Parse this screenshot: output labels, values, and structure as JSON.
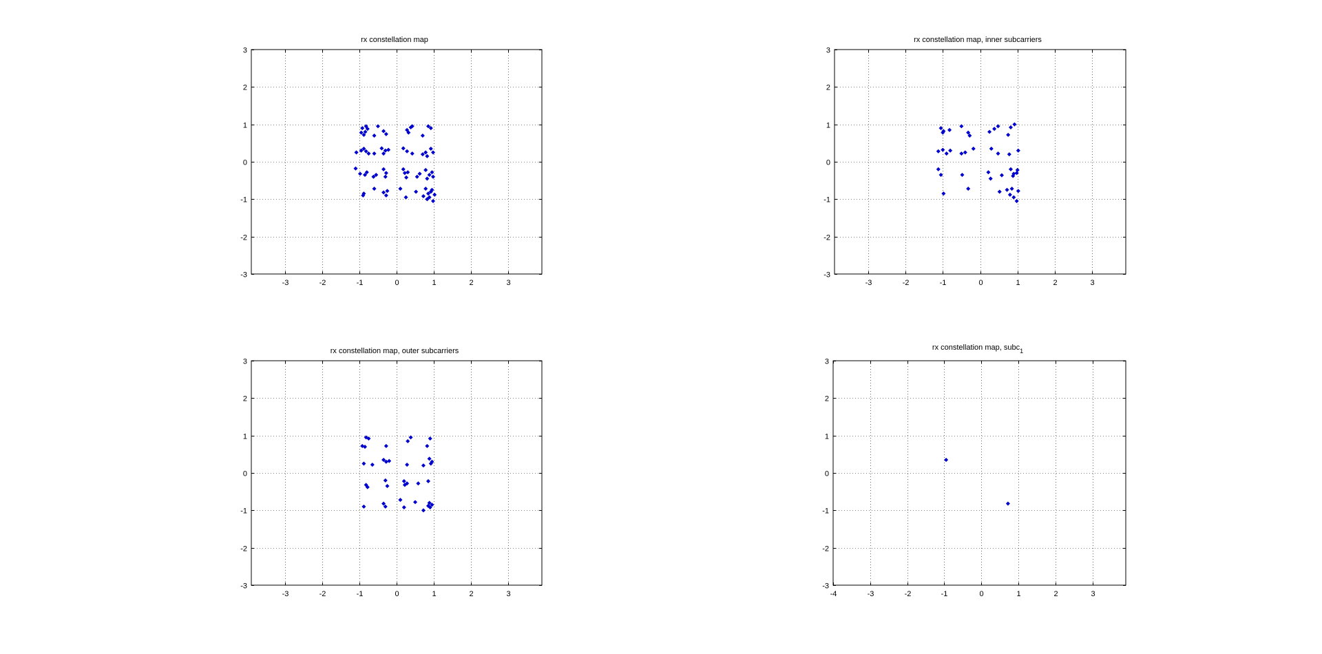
{
  "figure": {
    "background": "#ffffff",
    "marker_color": "#0000cc",
    "grid_color": "#000000"
  },
  "chart_data": [
    {
      "type": "scatter",
      "title": "rx constellation map",
      "title_subscript": "",
      "xlim": [
        -3.9,
        3.9
      ],
      "ylim": [
        -3,
        3
      ],
      "xticks": [
        -3,
        -2,
        -1,
        0,
        1,
        2,
        3
      ],
      "yticks": [
        -3,
        -2,
        -1,
        0,
        1,
        2,
        3
      ],
      "grid": true,
      "series": [
        {
          "points": [
            [
              -0.92,
              0.9
            ],
            [
              -0.82,
              0.95
            ],
            [
              -0.78,
              0.88
            ],
            [
              -0.95,
              0.78
            ],
            [
              -0.88,
              0.72
            ],
            [
              -0.84,
              0.8
            ],
            [
              -0.5,
              0.95
            ],
            [
              -0.35,
              0.82
            ],
            [
              -0.28,
              0.74
            ],
            [
              -0.6,
              0.7
            ],
            [
              0.28,
              0.85
            ],
            [
              0.38,
              0.92
            ],
            [
              0.42,
              0.95
            ],
            [
              0.32,
              0.78
            ],
            [
              0.7,
              0.7
            ],
            [
              0.85,
              0.95
            ],
            [
              0.92,
              0.9
            ],
            [
              -1.08,
              0.25
            ],
            [
              -0.95,
              0.3
            ],
            [
              -0.88,
              0.35
            ],
            [
              -0.75,
              0.22
            ],
            [
              -0.82,
              0.28
            ],
            [
              -0.6,
              0.22
            ],
            [
              -0.4,
              0.36
            ],
            [
              -0.3,
              0.3
            ],
            [
              -0.22,
              0.32
            ],
            [
              -0.35,
              0.22
            ],
            [
              0.18,
              0.36
            ],
            [
              0.28,
              0.28
            ],
            [
              0.42,
              0.22
            ],
            [
              0.7,
              0.2
            ],
            [
              0.78,
              0.25
            ],
            [
              0.92,
              0.35
            ],
            [
              0.98,
              0.25
            ],
            [
              0.82,
              0.15
            ],
            [
              -1.1,
              -0.18
            ],
            [
              -0.98,
              -0.32
            ],
            [
              -0.85,
              -0.35
            ],
            [
              -0.8,
              -0.28
            ],
            [
              -0.55,
              -0.35
            ],
            [
              -0.62,
              -0.4
            ],
            [
              -0.35,
              -0.2
            ],
            [
              -0.28,
              -0.3
            ],
            [
              -0.3,
              -0.4
            ],
            [
              0.18,
              -0.2
            ],
            [
              0.22,
              -0.3
            ],
            [
              0.26,
              -0.42
            ],
            [
              0.3,
              -0.28
            ],
            [
              0.55,
              -0.4
            ],
            [
              0.62,
              -0.32
            ],
            [
              0.78,
              -0.22
            ],
            [
              0.88,
              -0.35
            ],
            [
              0.95,
              -0.28
            ],
            [
              0.98,
              -0.4
            ],
            [
              0.82,
              -0.45
            ],
            [
              -0.88,
              -0.85
            ],
            [
              -0.9,
              -0.9
            ],
            [
              -0.6,
              -0.72
            ],
            [
              -0.35,
              -0.82
            ],
            [
              -0.28,
              -0.9
            ],
            [
              -0.25,
              -0.78
            ],
            [
              0.1,
              -0.72
            ],
            [
              0.25,
              -0.95
            ],
            [
              0.52,
              -0.8
            ],
            [
              0.72,
              -0.92
            ],
            [
              0.78,
              -0.72
            ],
            [
              0.85,
              -0.85
            ],
            [
              0.88,
              -0.95
            ],
            [
              0.92,
              -0.8
            ],
            [
              0.95,
              -0.75
            ],
            [
              0.98,
              -1.05
            ],
            [
              1.02,
              -0.88
            ],
            [
              0.82,
              -1.0
            ]
          ]
        }
      ]
    },
    {
      "type": "scatter",
      "title": "rx constellation map, inner subcarriers",
      "title_subscript": "",
      "xlim": [
        -3.9,
        3.9
      ],
      "ylim": [
        -3,
        3
      ],
      "xticks": [
        -3,
        -2,
        -1,
        0,
        1,
        2,
        3
      ],
      "yticks": [
        -3,
        -2,
        -1,
        0,
        1,
        2,
        3
      ],
      "grid": true,
      "series": [
        {
          "points": [
            [
              -1.05,
              0.9
            ],
            [
              -0.98,
              0.82
            ],
            [
              -0.82,
              0.85
            ],
            [
              -1.0,
              0.78
            ],
            [
              -0.5,
              0.95
            ],
            [
              -0.32,
              0.78
            ],
            [
              -0.28,
              0.7
            ],
            [
              0.25,
              0.8
            ],
            [
              0.38,
              0.88
            ],
            [
              0.48,
              0.95
            ],
            [
              0.75,
              0.72
            ],
            [
              0.82,
              0.92
            ],
            [
              0.92,
              1.0
            ],
            [
              -1.12,
              0.28
            ],
            [
              -1.0,
              0.32
            ],
            [
              -0.9,
              0.22
            ],
            [
              -0.8,
              0.3
            ],
            [
              -0.5,
              0.22
            ],
            [
              -0.4,
              0.25
            ],
            [
              -0.18,
              0.35
            ],
            [
              0.3,
              0.35
            ],
            [
              0.48,
              0.22
            ],
            [
              0.78,
              0.2
            ],
            [
              1.02,
              0.3
            ],
            [
              -1.12,
              -0.2
            ],
            [
              -1.05,
              -0.35
            ],
            [
              -0.48,
              -0.35
            ],
            [
              0.22,
              -0.28
            ],
            [
              0.28,
              -0.45
            ],
            [
              0.58,
              -0.36
            ],
            [
              0.82,
              -0.2
            ],
            [
              0.9,
              -0.32
            ],
            [
              0.98,
              -0.3
            ],
            [
              1.0,
              -0.22
            ],
            [
              0.88,
              -0.38
            ],
            [
              -0.98,
              -0.85
            ],
            [
              -0.32,
              -0.72
            ],
            [
              0.52,
              -0.8
            ],
            [
              0.72,
              -0.75
            ],
            [
              0.8,
              -0.88
            ],
            [
              0.85,
              -0.72
            ],
            [
              0.9,
              -0.95
            ],
            [
              0.98,
              -1.05
            ],
            [
              1.02,
              -0.78
            ]
          ]
        }
      ]
    },
    {
      "type": "scatter",
      "title": "rx constellation map, outer subcarriers",
      "title_subscript": "",
      "xlim": [
        -3.9,
        3.9
      ],
      "ylim": [
        -3,
        3
      ],
      "xticks": [
        -3,
        -2,
        -1,
        0,
        1,
        2,
        3
      ],
      "yticks": [
        -3,
        -2,
        -1,
        0,
        1,
        2,
        3
      ],
      "grid": true,
      "series": [
        {
          "points": [
            [
              -0.82,
              0.95
            ],
            [
              -0.75,
              0.92
            ],
            [
              -0.92,
              0.72
            ],
            [
              -0.85,
              0.7
            ],
            [
              -0.28,
              0.72
            ],
            [
              0.3,
              0.85
            ],
            [
              0.38,
              0.95
            ],
            [
              0.9,
              0.92
            ],
            [
              0.82,
              0.72
            ],
            [
              -0.88,
              0.25
            ],
            [
              -0.65,
              0.22
            ],
            [
              -0.35,
              0.35
            ],
            [
              -0.28,
              0.3
            ],
            [
              -0.2,
              0.32
            ],
            [
              0.28,
              0.22
            ],
            [
              0.72,
              0.2
            ],
            [
              0.88,
              0.38
            ],
            [
              0.92,
              0.25
            ],
            [
              0.95,
              0.3
            ],
            [
              -0.82,
              -0.32
            ],
            [
              -0.78,
              -0.38
            ],
            [
              -0.3,
              -0.2
            ],
            [
              -0.25,
              -0.35
            ],
            [
              0.2,
              -0.22
            ],
            [
              0.22,
              -0.32
            ],
            [
              0.28,
              -0.28
            ],
            [
              0.58,
              -0.28
            ],
            [
              0.85,
              -0.22
            ],
            [
              -0.88,
              -0.9
            ],
            [
              -0.35,
              -0.82
            ],
            [
              -0.3,
              -0.9
            ],
            [
              0.1,
              -0.72
            ],
            [
              0.2,
              -0.92
            ],
            [
              0.5,
              -0.78
            ],
            [
              0.72,
              -1.0
            ],
            [
              0.85,
              -0.88
            ],
            [
              0.88,
              -0.8
            ],
            [
              0.9,
              -0.92
            ],
            [
              0.95,
              -0.85
            ]
          ]
        }
      ]
    },
    {
      "type": "scatter",
      "title": "rx constellation map, subc",
      "title_subscript": "1",
      "xlim": [
        -4,
        3.9
      ],
      "ylim": [
        -3,
        3
      ],
      "xticks": [
        -4,
        -3,
        -2,
        -1,
        0,
        1,
        2,
        3
      ],
      "yticks": [
        -3,
        -2,
        -1,
        0,
        1,
        2,
        3
      ],
      "grid": true,
      "series": [
        {
          "points": [
            [
              -0.95,
              0.35
            ],
            [
              0.72,
              -0.82
            ]
          ]
        }
      ]
    }
  ]
}
